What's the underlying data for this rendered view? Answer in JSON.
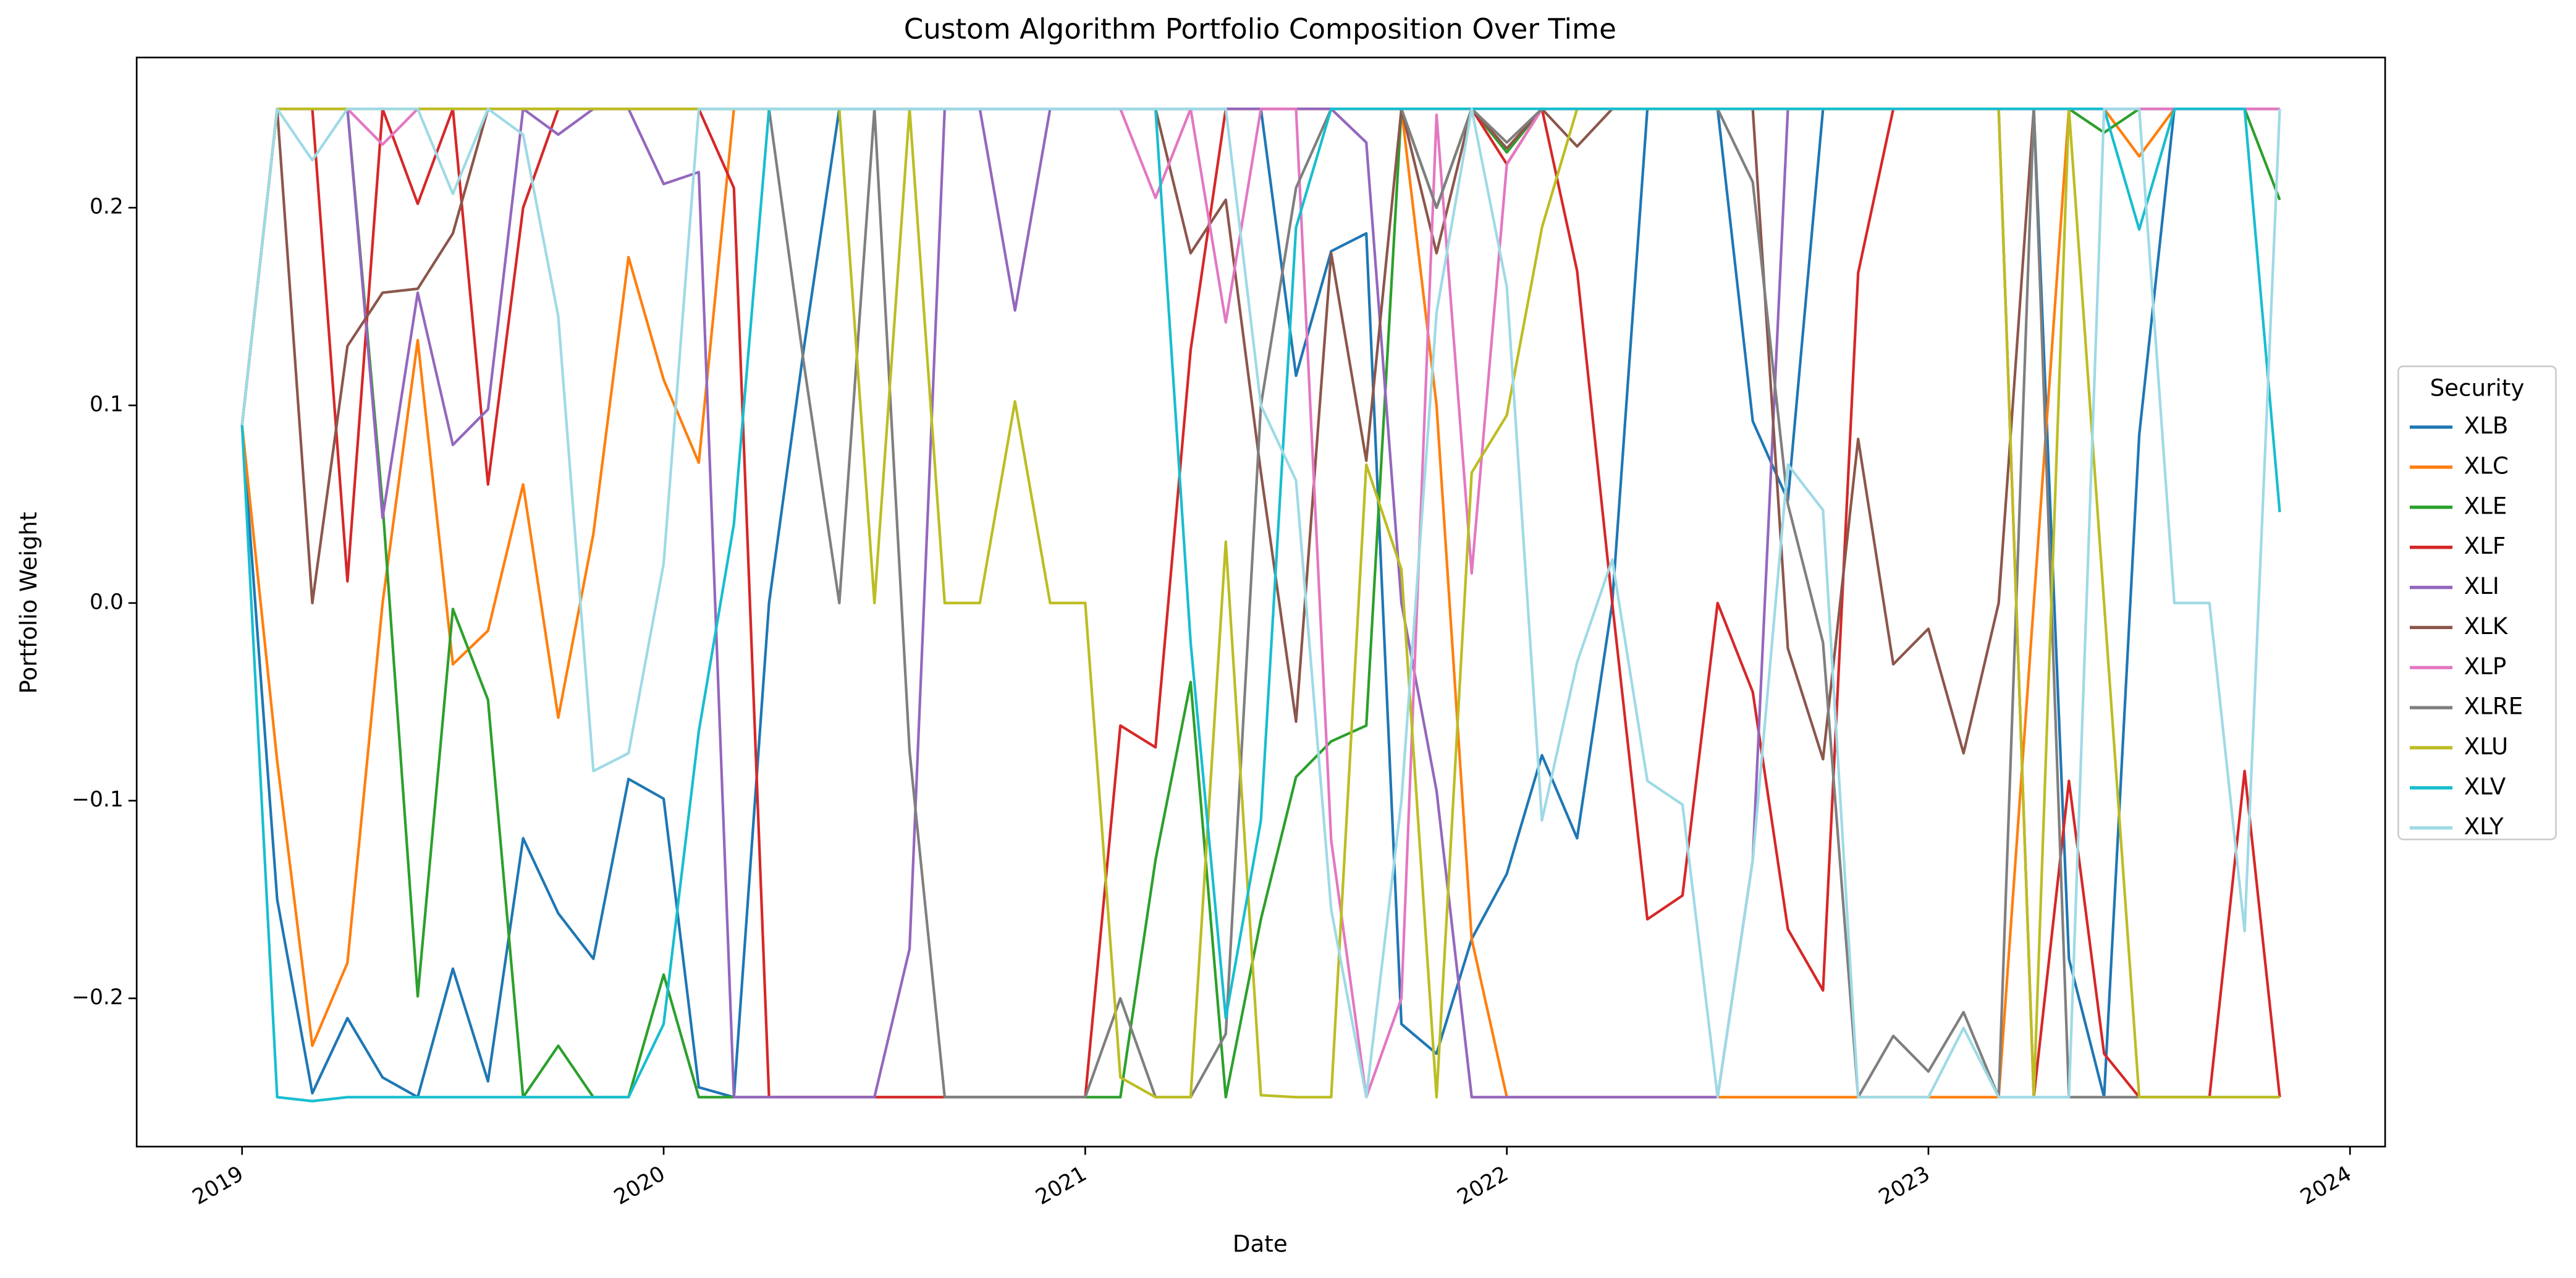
{
  "chart_data": {
    "type": "line",
    "title": "Custom Algorithm Portfolio Composition Over Time",
    "xlabel": "Date",
    "ylabel": "Portfolio Weight",
    "legend_title": "Security",
    "legend_loc": "center right outside",
    "grid": false,
    "x": [
      "2019-01",
      "2019-02",
      "2019-03",
      "2019-04",
      "2019-05",
      "2019-06",
      "2019-07",
      "2019-08",
      "2019-09",
      "2019-10",
      "2019-11",
      "2019-12",
      "2020-01",
      "2020-02",
      "2020-03",
      "2020-04",
      "2020-05",
      "2020-06",
      "2020-07",
      "2020-08",
      "2020-09",
      "2020-10",
      "2020-11",
      "2020-12",
      "2021-01",
      "2021-02",
      "2021-03",
      "2021-04",
      "2021-05",
      "2021-06",
      "2021-07",
      "2021-08",
      "2021-09",
      "2021-10",
      "2021-11",
      "2021-12",
      "2022-01",
      "2022-02",
      "2022-03",
      "2022-04",
      "2022-05",
      "2022-06",
      "2022-07",
      "2022-08",
      "2022-09",
      "2022-10",
      "2022-11",
      "2022-12",
      "2023-01",
      "2023-02",
      "2023-03",
      "2023-04",
      "2023-05",
      "2023-06",
      "2023-07",
      "2023-08",
      "2023-09",
      "2023-10",
      "2023-11"
    ],
    "xlim": [
      "2018-10",
      "2024-02"
    ],
    "xticks": [
      "2019",
      "2020",
      "2021",
      "2022",
      "2023",
      "2024"
    ],
    "ylim": [
      -0.275,
      0.276
    ],
    "yticks": [
      {
        "value": -0.2,
        "label": "−0.2"
      },
      {
        "value": -0.1,
        "label": "−0.1"
      },
      {
        "value": 0,
        "label": "0.0"
      },
      0.1,
      0.2
    ],
    "series": [
      {
        "name": "XLB",
        "color": "#1f77b4",
        "values": [
          0.09,
          -0.15,
          -0.248,
          -0.21,
          -0.24,
          -0.25,
          -0.185,
          -0.242,
          -0.119,
          -0.157,
          -0.18,
          -0.089,
          -0.099,
          -0.245,
          -0.25,
          0.0,
          0.13,
          0.25,
          0.25,
          0.25,
          0.25,
          0.25,
          0.25,
          0.25,
          0.25,
          0.25,
          0.25,
          0.25,
          0.25,
          0.25,
          0.115,
          0.178,
          0.187,
          -0.213,
          -0.228,
          -0.17,
          -0.137,
          -0.077,
          -0.119,
          0.0,
          0.25,
          0.25,
          0.25,
          0.092,
          0.052,
          0.25,
          0.25,
          0.25,
          0.25,
          0.25,
          0.25,
          0.25,
          -0.18,
          -0.25,
          0.085,
          0.25,
          0.25,
          0.25,
          0.25
        ]
      },
      {
        "name": "XLC",
        "color": "#ff7f0e",
        "values": [
          0.09,
          -0.08,
          -0.224,
          -0.182,
          0.0,
          0.133,
          -0.031,
          -0.014,
          0.06,
          -0.058,
          0.035,
          0.175,
          0.113,
          0.071,
          0.25,
          0.25,
          0.25,
          0.25,
          0.25,
          0.25,
          0.25,
          0.25,
          0.25,
          0.25,
          0.25,
          0.25,
          0.25,
          0.25,
          0.25,
          0.25,
          0.25,
          0.25,
          0.25,
          0.25,
          0.1,
          -0.17,
          -0.25,
          -0.25,
          -0.25,
          -0.25,
          -0.25,
          -0.25,
          -0.25,
          -0.25,
          -0.25,
          -0.25,
          -0.25,
          -0.25,
          -0.25,
          -0.25,
          -0.25,
          0.0,
          0.25,
          0.25,
          0.226,
          0.25,
          0.25,
          0.25,
          0.25
        ]
      },
      {
        "name": "XLE",
        "color": "#2ca02c",
        "values": [
          0.09,
          0.25,
          0.25,
          0.25,
          0.05,
          -0.199,
          -0.003,
          -0.049,
          -0.25,
          -0.224,
          -0.25,
          -0.25,
          -0.188,
          -0.25,
          -0.25,
          -0.25,
          -0.25,
          -0.25,
          -0.25,
          -0.25,
          -0.25,
          -0.25,
          -0.25,
          -0.25,
          -0.25,
          -0.25,
          -0.13,
          -0.04,
          -0.25,
          -0.16,
          -0.088,
          -0.07,
          -0.062,
          0.25,
          0.2,
          0.25,
          0.228,
          0.25,
          0.25,
          0.25,
          0.25,
          0.25,
          0.25,
          0.25,
          0.25,
          0.25,
          0.25,
          0.25,
          0.25,
          0.25,
          0.25,
          0.25,
          0.25,
          0.238,
          0.25,
          0.25,
          0.25,
          0.25,
          0.204
        ]
      },
      {
        "name": "XLF",
        "color": "#d62728",
        "values": [
          0.09,
          0.25,
          0.25,
          0.011,
          0.25,
          0.202,
          0.25,
          0.06,
          0.2,
          0.25,
          0.25,
          0.25,
          0.25,
          0.25,
          0.21,
          -0.25,
          -0.25,
          -0.25,
          -0.25,
          -0.25,
          -0.25,
          -0.25,
          -0.25,
          -0.25,
          -0.25,
          -0.062,
          -0.073,
          0.128,
          0.25,
          0.25,
          0.25,
          0.25,
          0.25,
          0.25,
          0.25,
          0.25,
          0.222,
          0.25,
          0.168,
          0.0,
          -0.16,
          -0.148,
          0.0,
          -0.045,
          -0.165,
          -0.196,
          0.167,
          0.25,
          0.25,
          0.25,
          0.25,
          -0.25,
          -0.09,
          -0.228,
          -0.25,
          -0.25,
          -0.25,
          -0.085,
          -0.25
        ]
      },
      {
        "name": "XLI",
        "color": "#9467bd",
        "values": [
          0.09,
          0.25,
          0.25,
          0.25,
          0.043,
          0.157,
          0.08,
          0.098,
          0.25,
          0.237,
          0.25,
          0.25,
          0.212,
          0.218,
          -0.25,
          -0.25,
          -0.25,
          -0.25,
          -0.25,
          -0.175,
          0.25,
          0.25,
          0.148,
          0.25,
          0.25,
          0.25,
          0.25,
          0.25,
          0.25,
          0.25,
          0.25,
          0.25,
          0.233,
          0.0,
          -0.095,
          -0.25,
          -0.25,
          -0.25,
          -0.25,
          -0.25,
          -0.25,
          -0.25,
          -0.25,
          -0.13,
          0.25,
          0.25,
          0.25,
          0.25,
          0.25,
          0.25,
          0.25,
          0.25,
          0.25,
          0.25,
          0.25,
          0.25,
          0.25,
          0.25,
          0.25
        ]
      },
      {
        "name": "XLK",
        "color": "#8c564b",
        "values": [
          0.09,
          0.25,
          0.0,
          0.13,
          0.157,
          0.159,
          0.187,
          0.25,
          0.25,
          0.25,
          0.25,
          0.25,
          0.25,
          0.25,
          0.25,
          0.25,
          0.25,
          0.25,
          0.25,
          0.25,
          0.25,
          0.25,
          0.25,
          0.25,
          0.25,
          0.25,
          0.25,
          0.177,
          0.204,
          0.066,
          -0.06,
          0.177,
          0.072,
          0.25,
          0.177,
          0.25,
          0.23,
          0.25,
          0.231,
          0.25,
          0.25,
          0.25,
          0.25,
          0.25,
          -0.023,
          -0.079,
          0.083,
          -0.031,
          -0.013,
          -0.076,
          0.0,
          0.25,
          0.25,
          0.25,
          0.25,
          0.25,
          0.25,
          0.25,
          0.25
        ]
      },
      {
        "name": "XLP",
        "color": "#e377c2",
        "values": [
          0.09,
          0.25,
          0.25,
          0.25,
          0.232,
          0.25,
          0.25,
          0.25,
          0.25,
          0.25,
          0.25,
          0.25,
          0.25,
          0.25,
          0.25,
          0.25,
          0.25,
          0.25,
          0.25,
          0.25,
          0.25,
          0.25,
          0.25,
          0.25,
          0.25,
          0.25,
          0.205,
          0.25,
          0.142,
          0.25,
          0.25,
          -0.12,
          -0.25,
          -0.2,
          0.247,
          0.015,
          0.222,
          0.25,
          0.25,
          0.25,
          0.25,
          0.25,
          0.25,
          0.25,
          0.25,
          0.25,
          0.25,
          0.25,
          0.25,
          0.25,
          0.25,
          0.25,
          0.25,
          0.25,
          0.25,
          0.25,
          0.25,
          0.25,
          0.25
        ]
      },
      {
        "name": "XLRE",
        "color": "#7f7f7f",
        "values": [
          0.09,
          0.25,
          0.25,
          0.25,
          0.25,
          0.25,
          0.25,
          0.25,
          0.25,
          0.25,
          0.25,
          0.25,
          0.25,
          0.25,
          0.25,
          0.25,
          0.12,
          0.0,
          0.25,
          -0.075,
          -0.25,
          -0.25,
          -0.25,
          -0.25,
          -0.25,
          -0.2,
          -0.25,
          -0.25,
          -0.218,
          0.1,
          0.21,
          0.25,
          0.25,
          0.25,
          0.2,
          0.25,
          0.233,
          0.25,
          0.25,
          0.25,
          0.25,
          0.25,
          0.25,
          0.213,
          0.05,
          -0.02,
          -0.25,
          -0.219,
          -0.237,
          -0.207,
          -0.25,
          0.25,
          -0.25,
          -0.25,
          -0.25,
          -0.25,
          -0.25,
          -0.25,
          -0.25
        ]
      },
      {
        "name": "XLU",
        "color": "#bcbd22",
        "values": [
          0.09,
          0.25,
          0.25,
          0.25,
          0.25,
          0.25,
          0.25,
          0.25,
          0.25,
          0.25,
          0.25,
          0.25,
          0.25,
          0.25,
          0.25,
          0.25,
          0.25,
          0.25,
          0.0,
          0.25,
          0.0,
          0.0,
          0.102,
          0.0,
          0.0,
          -0.24,
          -0.25,
          -0.25,
          0.031,
          -0.249,
          -0.25,
          -0.25,
          0.07,
          0.017,
          -0.25,
          0.066,
          0.095,
          0.19,
          0.25,
          0.25,
          0.25,
          0.25,
          0.25,
          0.25,
          0.25,
          0.25,
          0.25,
          0.25,
          0.25,
          0.25,
          0.25,
          -0.25,
          0.25,
          0.0,
          -0.25,
          -0.25,
          -0.25,
          -0.25,
          -0.25
        ]
      },
      {
        "name": "XLV",
        "color": "#17becf",
        "values": [
          0.09,
          -0.25,
          -0.252,
          -0.25,
          -0.25,
          -0.25,
          -0.25,
          -0.25,
          -0.25,
          -0.25,
          -0.25,
          -0.25,
          -0.213,
          -0.065,
          0.04,
          0.25,
          0.25,
          0.25,
          0.25,
          0.25,
          0.25,
          0.25,
          0.25,
          0.25,
          0.25,
          0.25,
          0.25,
          -0.02,
          -0.21,
          -0.11,
          0.19,
          0.25,
          0.25,
          0.25,
          0.25,
          0.25,
          0.25,
          0.25,
          0.25,
          0.25,
          0.25,
          0.25,
          0.25,
          0.25,
          0.25,
          0.25,
          0.25,
          0.25,
          0.25,
          0.25,
          0.25,
          0.25,
          0.25,
          0.25,
          0.189,
          0.25,
          0.25,
          0.25,
          0.046
        ]
      },
      {
        "name": "XLY",
        "color": "#9edae5",
        "values": [
          0.09,
          0.25,
          0.224,
          0.25,
          0.25,
          0.25,
          0.207,
          0.25,
          0.237,
          0.145,
          -0.085,
          -0.076,
          0.02,
          0.25,
          0.25,
          0.25,
          0.25,
          0.25,
          0.25,
          0.25,
          0.25,
          0.25,
          0.25,
          0.25,
          0.25,
          0.25,
          0.25,
          0.25,
          0.25,
          0.1,
          0.062,
          -0.155,
          -0.25,
          -0.1,
          0.147,
          0.25,
          0.16,
          -0.11,
          -0.03,
          0.022,
          -0.09,
          -0.102,
          -0.25,
          -0.13,
          0.07,
          0.047,
          -0.25,
          -0.25,
          -0.25,
          -0.215,
          -0.25,
          -0.25,
          -0.25,
          0.25,
          0.25,
          0.0,
          0.0,
          -0.166,
          0.25
        ]
      }
    ]
  }
}
